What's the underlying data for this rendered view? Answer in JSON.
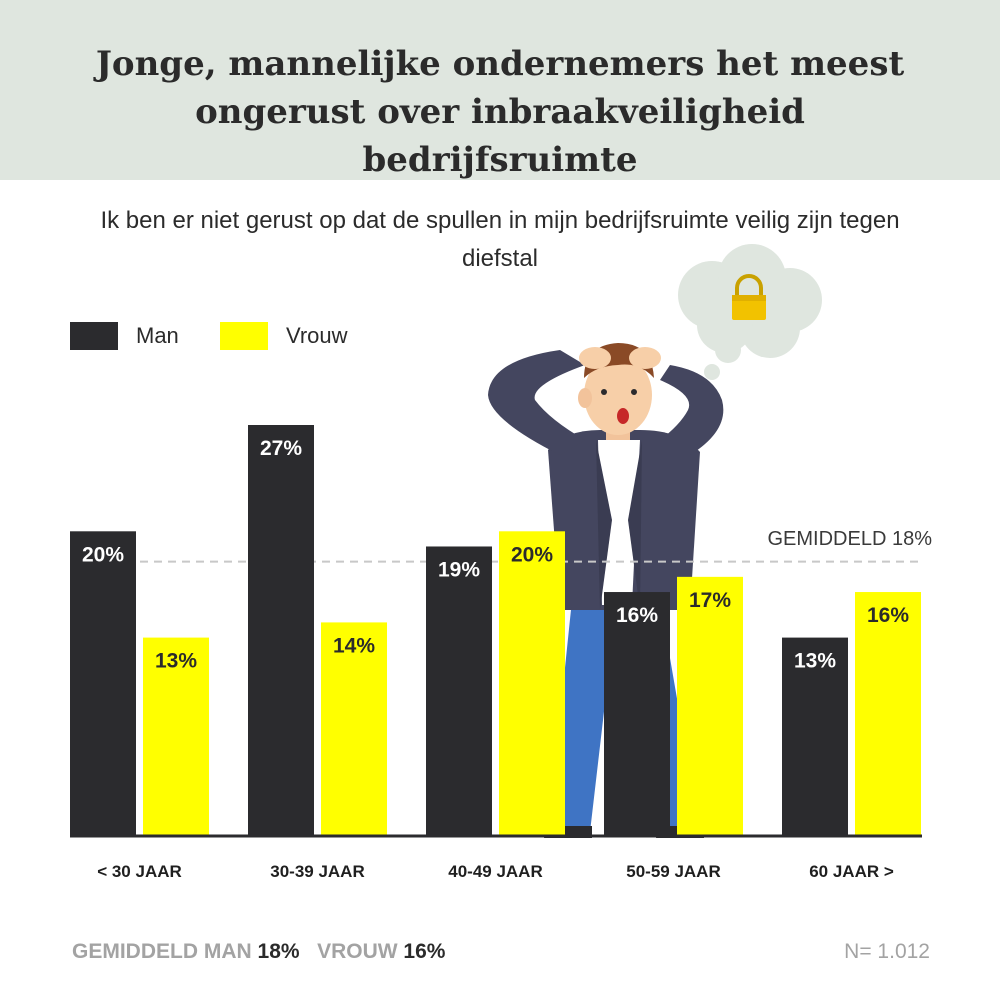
{
  "header": {
    "title": "Jonge, mannelijke ondernemers het meest ongerust over inbraakveiligheid bedrijfsruimte",
    "background": "#dfe6df"
  },
  "chart_data": {
    "type": "bar",
    "title": "Ik ben er niet gerust op dat de spullen in mijn bedrijfsruimte veilig zijn tegen diefstal",
    "categories": [
      "< 30 JAAR",
      "30-39 JAAR",
      "40-49 JAAR",
      "50-59 JAAR",
      "60 JAAR >"
    ],
    "series": [
      {
        "name": "Man",
        "values": [
          20,
          27,
          19,
          16,
          13
        ],
        "labels": [
          "20%",
          "27%",
          "19%",
          "16%",
          "13%"
        ],
        "color": "#2b2b2e",
        "label_color": "#ffffff"
      },
      {
        "name": "Vrouw",
        "values": [
          13,
          14,
          20,
          17,
          16
        ],
        "labels": [
          "13%",
          "14%",
          "20%",
          "17%",
          "16%"
        ],
        "color": "#ffff00",
        "label_color": "#2b2b2b"
      }
    ],
    "reference_line": {
      "label": "GEMIDDELD 18%",
      "value": 18,
      "style": "dashed",
      "color": "#c8c8c8"
    },
    "ylim": [
      0,
      27
    ],
    "legend_position": "top-left",
    "grid": false
  },
  "footer": {
    "avg_man_label": "GEMIDDELD MAN",
    "avg_man_value": "18%",
    "avg_vrouw_label": "VROUW",
    "avg_vrouw_value": "16%",
    "sample_size": "N= 1.012"
  },
  "colors": {
    "man": "#2b2b2e",
    "vrouw": "#ffff00",
    "axis": "#2b2b2e"
  },
  "illustration": {
    "figure": "worried-man",
    "thought_icon": "padlock-icon"
  }
}
